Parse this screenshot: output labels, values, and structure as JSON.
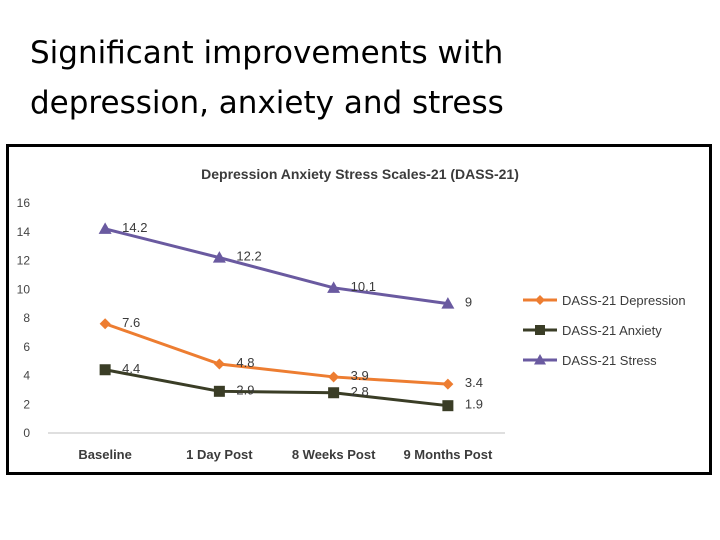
{
  "slide": {
    "title_line1": "Significant improvements with",
    "title_line2": "depression, anxiety and stress"
  },
  "chart_data": {
    "type": "line",
    "title": "Depression Anxiety Stress Scales-21 (DASS-21)",
    "categories": [
      "Baseline",
      "1 Day Post",
      "8 Weeks Post",
      "9 Months Post"
    ],
    "ylim": [
      0,
      16
    ],
    "yticks": [
      0,
      2,
      4,
      6,
      8,
      10,
      12,
      14,
      16
    ],
    "grid": false,
    "legend_position": "right",
    "series": [
      {
        "name": "DASS-21 Depression",
        "values": [
          7.6,
          4.8,
          3.9,
          3.4
        ],
        "labels": [
          "7.6",
          "4.8",
          "3.9",
          "3.4"
        ],
        "color": "#ED7D31",
        "marker": "diamond"
      },
      {
        "name": "DASS-21 Anxiety",
        "values": [
          4.4,
          2.9,
          2.8,
          1.9
        ],
        "labels": [
          "4.4",
          "2.9",
          "2.8",
          "1.9"
        ],
        "color": "#3A3D26",
        "marker": "square"
      },
      {
        "name": "DASS-21 Stress",
        "values": [
          14.2,
          12.2,
          10.1,
          9.0
        ],
        "labels": [
          "14.2",
          "12.2",
          "10.1",
          "9"
        ],
        "color": "#6A5AA0",
        "marker": "triangle"
      }
    ]
  }
}
